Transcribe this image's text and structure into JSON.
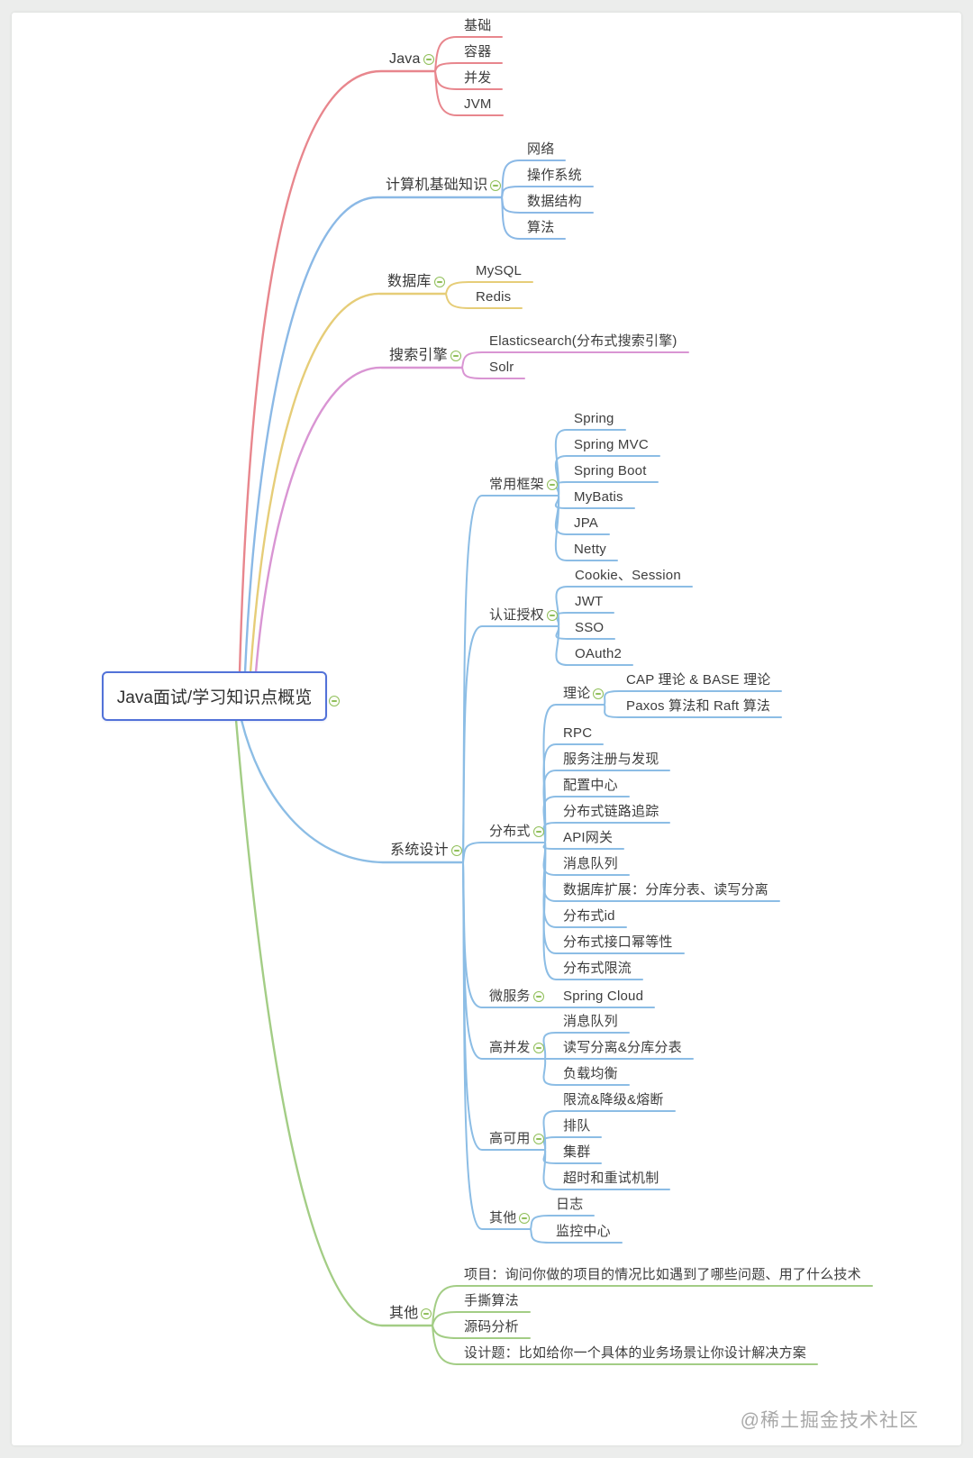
{
  "watermark": "@稀土掘金技术社区",
  "root": {
    "label": "Java面试/学习知识点概览"
  },
  "ui": {
    "root_border_color": "#5272d8",
    "collapse_icon_color": "#90bf5b",
    "page_bg": "#ecedec",
    "canvas_bg": "#ffffff",
    "text_color": "#3d3d3d"
  },
  "branches": [
    {
      "label": "Java",
      "color": "#e8868d",
      "children": [
        {
          "label": "基础"
        },
        {
          "label": "容器"
        },
        {
          "label": "并发"
        },
        {
          "label": "JVM"
        }
      ]
    },
    {
      "label": "计算机基础知识",
      "color": "#8bb9e6",
      "children": [
        {
          "label": "网络"
        },
        {
          "label": "操作系统"
        },
        {
          "label": "数据结构"
        },
        {
          "label": "算法"
        }
      ]
    },
    {
      "label": "数据库",
      "color": "#e6cd78",
      "children": [
        {
          "label": "MySQL"
        },
        {
          "label": "Redis"
        }
      ]
    },
    {
      "label": "搜索引擎",
      "color": "#d995d3",
      "children": [
        {
          "label": "Elasticsearch(分布式搜索引擎)"
        },
        {
          "label": "Solr"
        }
      ]
    },
    {
      "label": "系统设计",
      "color": "#8cbde5",
      "children": [
        {
          "label": "常用框架",
          "children": [
            {
              "label": "Spring"
            },
            {
              "label": "Spring MVC"
            },
            {
              "label": "Spring Boot"
            },
            {
              "label": "MyBatis"
            },
            {
              "label": "JPA"
            },
            {
              "label": "Netty"
            }
          ]
        },
        {
          "label": "认证授权",
          "children": [
            {
              "label": "Cookie、Session"
            },
            {
              "label": "JWT"
            },
            {
              "label": "SSO"
            },
            {
              "label": "OAuth2"
            }
          ]
        },
        {
          "label": "分布式",
          "children": [
            {
              "label": "理论",
              "children": [
                {
                  "label": "CAP 理论 & BASE 理论"
                },
                {
                  "label": "Paxos 算法和 Raft 算法"
                }
              ]
            },
            {
              "label": "RPC"
            },
            {
              "label": "服务注册与发现"
            },
            {
              "label": "配置中心"
            },
            {
              "label": "分布式链路追踪"
            },
            {
              "label": "API网关"
            },
            {
              "label": "消息队列"
            },
            {
              "label": "数据库扩展：分库分表、读写分离"
            },
            {
              "label": "分布式id"
            },
            {
              "label": "分布式接口幂等性"
            },
            {
              "label": "分布式限流"
            }
          ]
        },
        {
          "label": "微服务",
          "children": [
            {
              "label": "Spring Cloud"
            }
          ]
        },
        {
          "label": "高并发",
          "children": [
            {
              "label": "消息队列"
            },
            {
              "label": "读写分离&分库分表"
            },
            {
              "label": "负载均衡"
            }
          ]
        },
        {
          "label": "高可用",
          "children": [
            {
              "label": "限流&降级&熔断"
            },
            {
              "label": "排队"
            },
            {
              "label": "集群"
            },
            {
              "label": "超时和重试机制"
            }
          ]
        },
        {
          "label": "其他",
          "children": [
            {
              "label": "日志"
            },
            {
              "label": "监控中心"
            }
          ]
        }
      ]
    },
    {
      "label": "其他",
      "color": "#a3cd85",
      "children": [
        {
          "label": "项目：询问你做的项目的情况比如遇到了哪些问题、用了什么技术"
        },
        {
          "label": "手撕算法"
        },
        {
          "label": "源码分析"
        },
        {
          "label": "设计题：比如给你一个具体的业务场景让你设计解决方案"
        }
      ]
    }
  ]
}
